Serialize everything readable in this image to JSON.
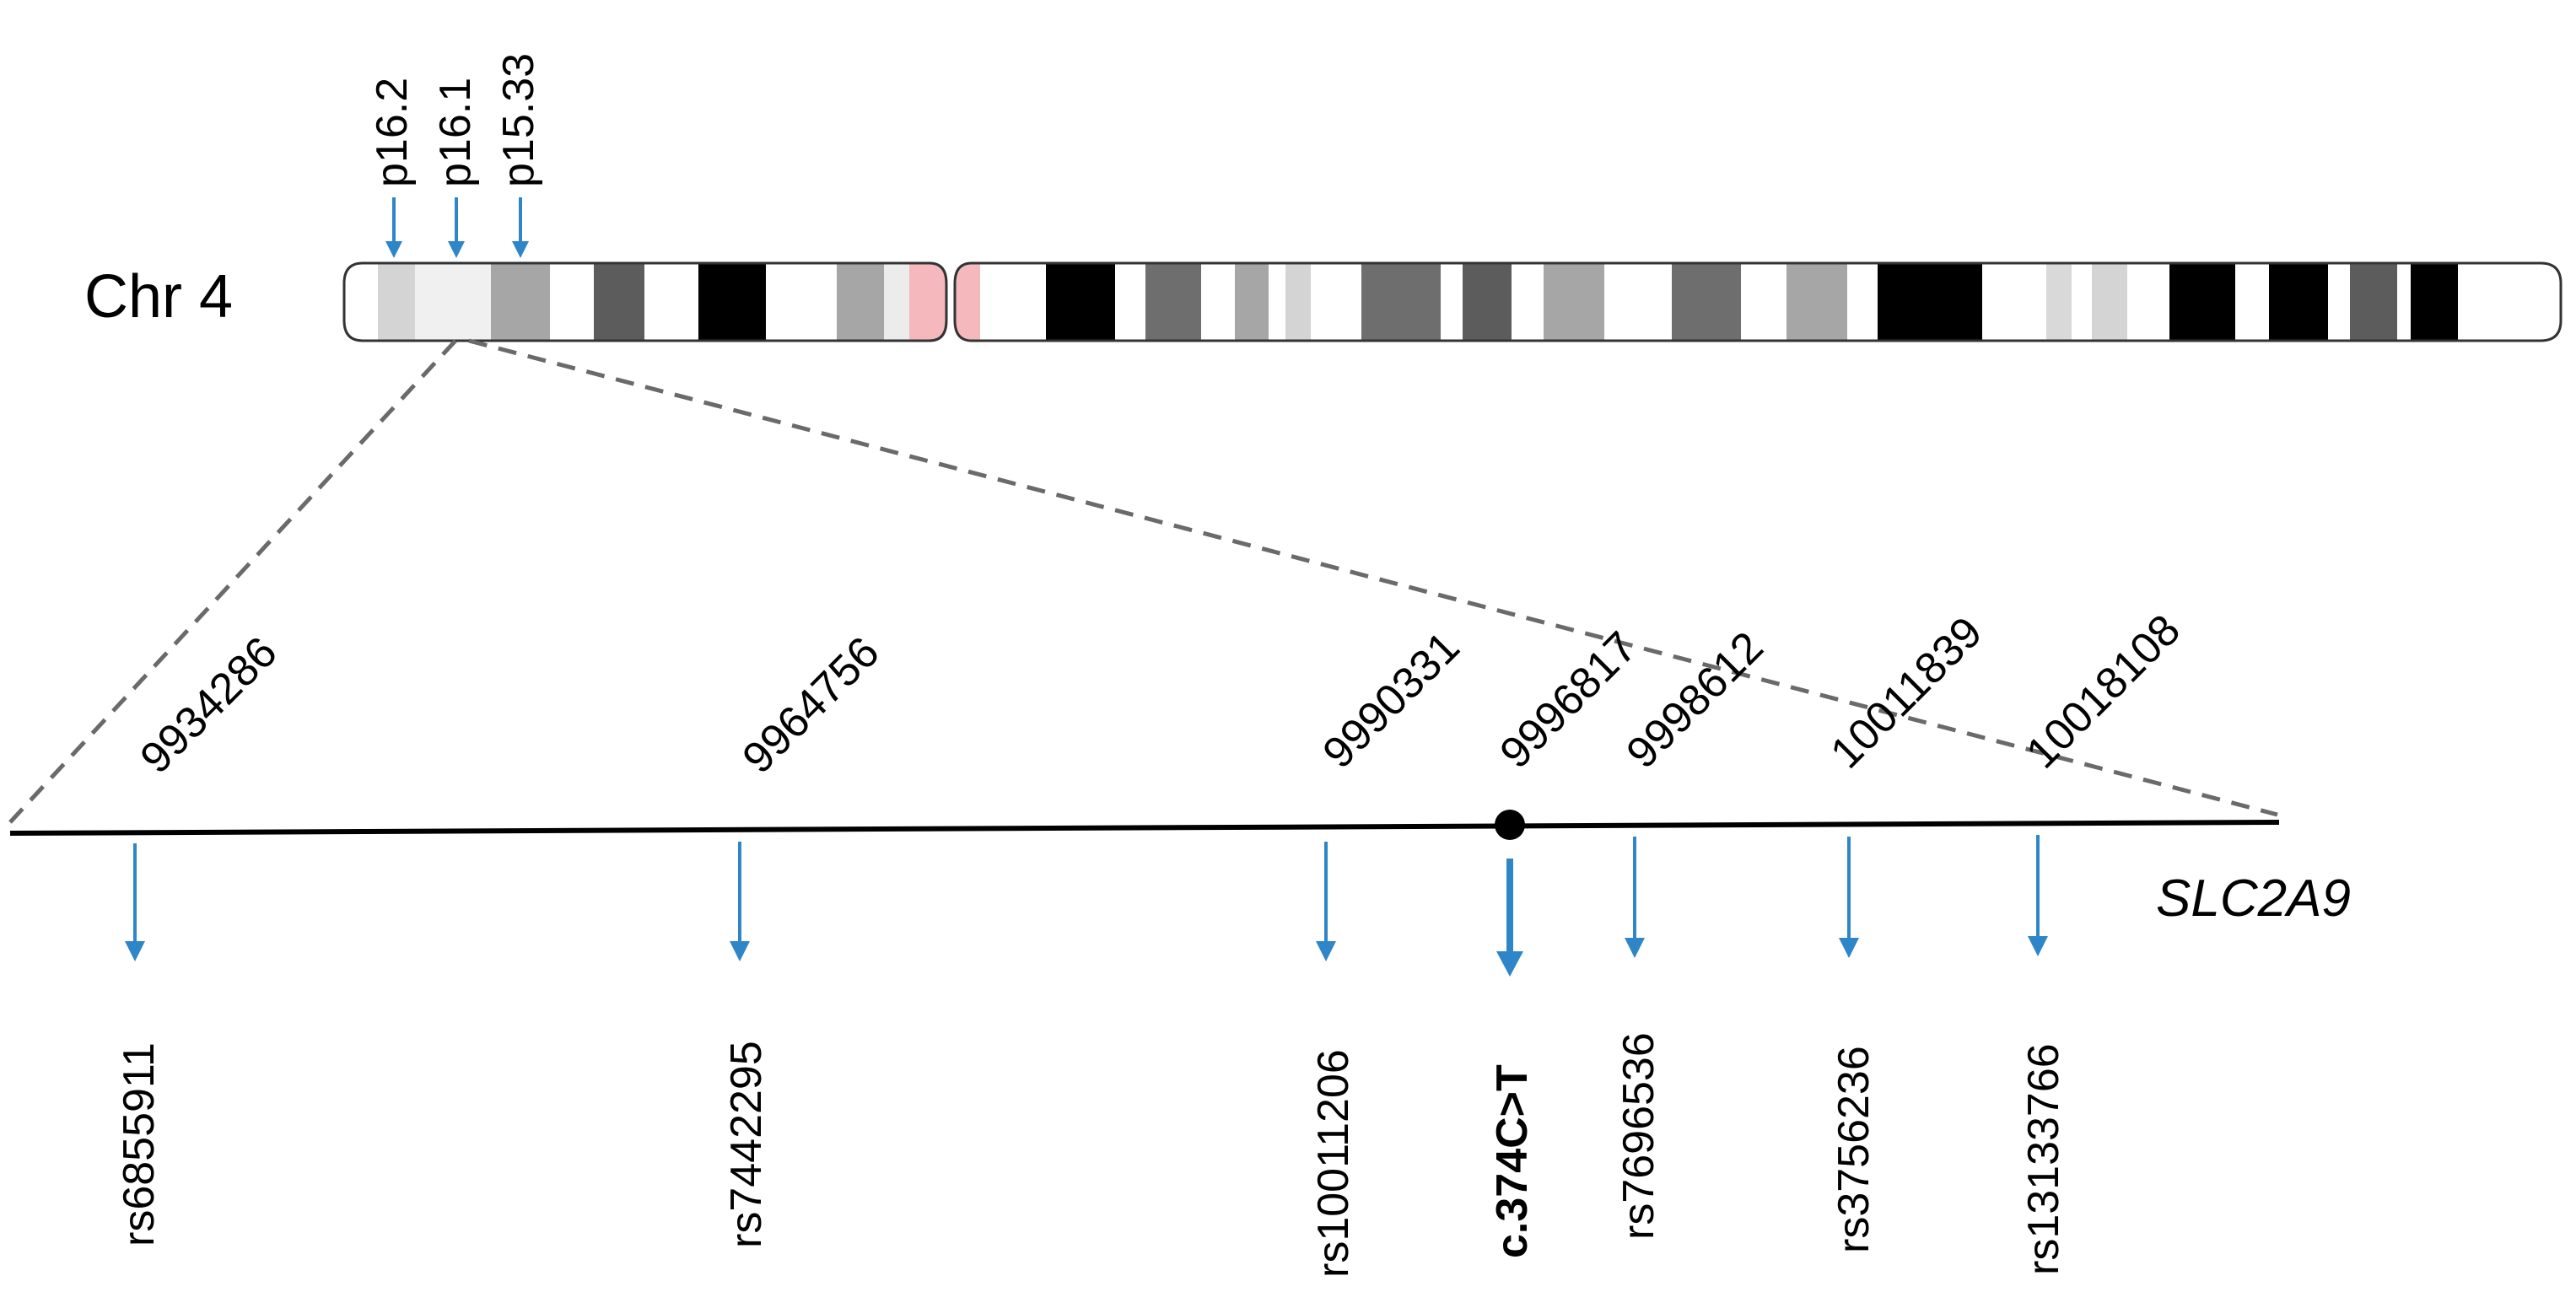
{
  "chromosome": {
    "label": "Chr 4",
    "bands": [
      "p16.2",
      "p16.1",
      "p15.33"
    ]
  },
  "gene": {
    "name": "SLC2A9"
  },
  "variants": [
    {
      "position": "9934286",
      "id": "rs6855911"
    },
    {
      "position": "9964756",
      "id": "rs7442295"
    },
    {
      "position": "9990331",
      "id": "rs10011206"
    },
    {
      "position": "9996817",
      "id": "c.374C>T"
    },
    {
      "position": "9998612",
      "id": "rs7696536"
    },
    {
      "position": "10011839",
      "id": "rs3756236"
    },
    {
      "position": "10018108",
      "id": "rs13133766"
    }
  ],
  "colors": {
    "arrow": "#2e86c8",
    "centromere": "#f5b9bd",
    "dashed_line": "#6a6a6a",
    "line": "#000000"
  }
}
